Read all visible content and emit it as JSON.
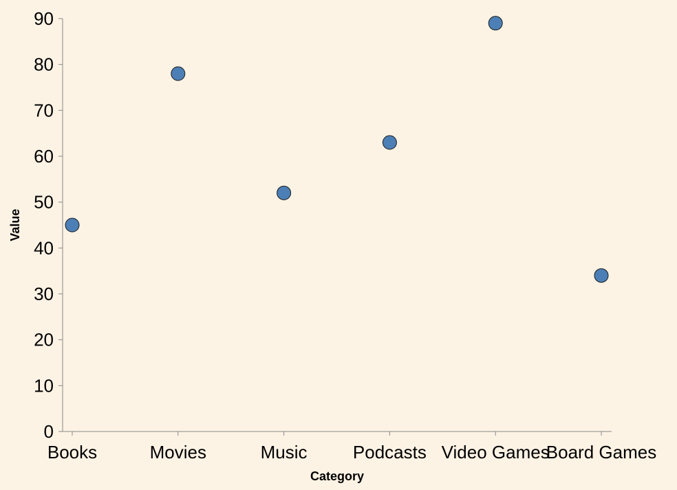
{
  "chart_data": {
    "type": "scatter",
    "categories": [
      "Books",
      "Movies",
      "Music",
      "Podcasts",
      "Video Games",
      "Board Games"
    ],
    "values": [
      45,
      78,
      52,
      63,
      89,
      34
    ],
    "xlabel": "Category",
    "ylabel": "Value",
    "ylim": [
      0,
      90
    ],
    "yticks": [
      "0",
      "10",
      "20",
      "30",
      "40",
      "50",
      "60",
      "70",
      "80",
      "90"
    ],
    "grid": false,
    "legend": "none"
  },
  "colors": {
    "background": "#fdf3e5",
    "point_fill": "#4c7fb5",
    "point_stroke": "#1a1a1a",
    "axis": "#888888"
  }
}
